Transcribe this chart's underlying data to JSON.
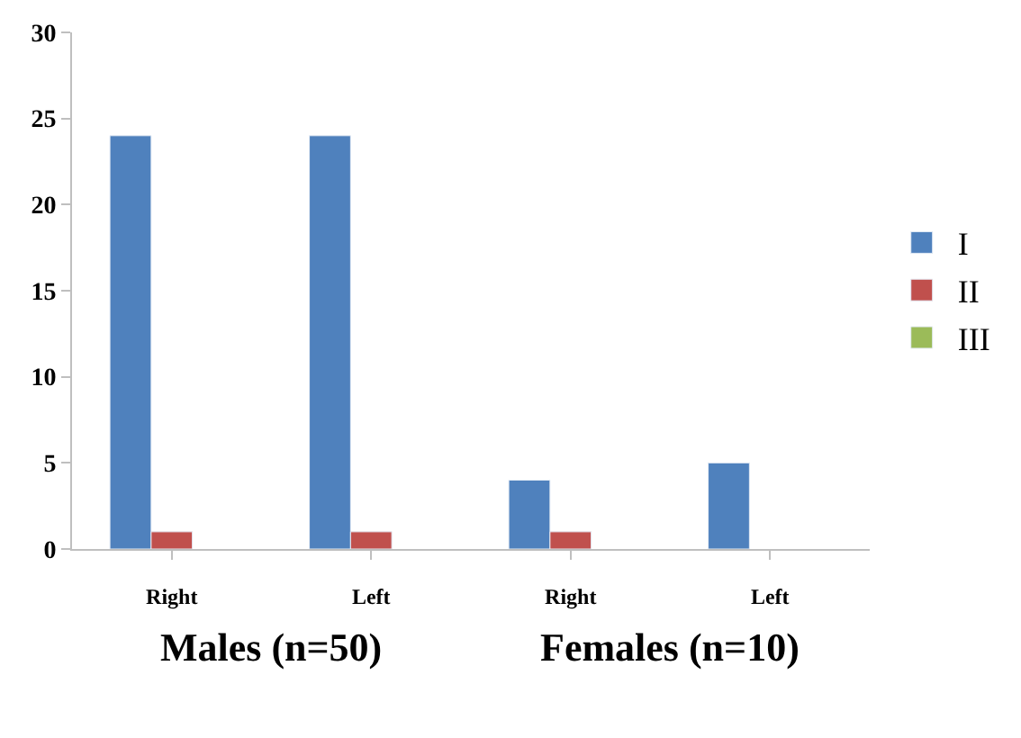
{
  "chart_data": {
    "type": "bar",
    "categories": [
      "Right",
      "Left",
      "Right",
      "Left"
    ],
    "series": [
      {
        "name": "I",
        "color": "#4f81bd",
        "values": [
          24,
          24,
          4,
          5
        ]
      },
      {
        "name": "II",
        "color": "#c0504d",
        "values": [
          1,
          1,
          1,
          null
        ]
      },
      {
        "name": "III",
        "color": "#9bbb59",
        "values": [
          null,
          null,
          null,
          null
        ]
      }
    ],
    "ylim": [
      0,
      30
    ],
    "yticks": [
      0,
      5,
      10,
      15,
      20,
      25,
      30
    ],
    "legend": "right",
    "annotations": [
      "Males (n=50)",
      "Females (n=10)"
    ]
  }
}
